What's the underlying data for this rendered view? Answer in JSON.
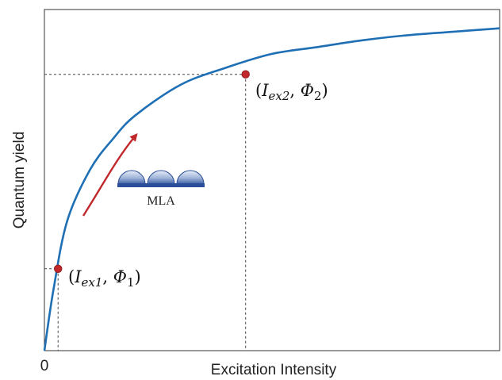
{
  "chart_data": {
    "type": "line",
    "xlabel": "Excitation Intensity",
    "ylabel": "Quantum yield",
    "x_ticks": [
      "0"
    ],
    "grid": false,
    "legend": "none",
    "xlim": [
      0,
      1
    ],
    "ylim": [
      0,
      1
    ],
    "series": [
      {
        "x": [
          0,
          0.02,
          0.05,
          0.1,
          0.15,
          0.2,
          0.3,
          0.4,
          0.5,
          0.6,
          0.7,
          0.8,
          0.9,
          1.0
        ],
        "y": [
          0,
          0.18,
          0.38,
          0.53,
          0.62,
          0.69,
          0.78,
          0.83,
          0.87,
          0.89,
          0.91,
          0.925,
          0.935,
          0.945
        ]
      }
    ],
    "points": [
      {
        "x": 0.03,
        "y": 0.24,
        "label_parts": [
          "(",
          "I",
          "ex1",
          ", ",
          "Φ",
          "1",
          ")"
        ]
      },
      {
        "x": 0.442,
        "y": 0.81,
        "label_parts": [
          "(",
          "I",
          "ex2",
          ", ",
          "Φ",
          "2",
          ")"
        ]
      }
    ],
    "annotation": {
      "text": "MLA",
      "icon": "microlens-array-icon"
    },
    "colors": {
      "curve": "#1f6fb5",
      "point": "#c0282b",
      "arrow": "#c0282b",
      "guides": "#444444"
    }
  }
}
